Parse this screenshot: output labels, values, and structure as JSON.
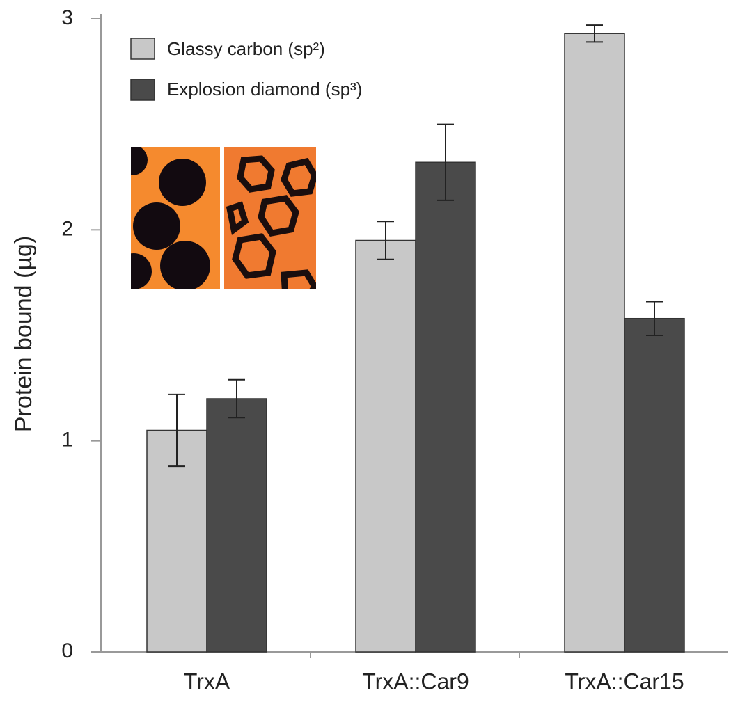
{
  "chart_data": {
    "type": "bar",
    "y_label": "Protein bound (µg)",
    "categories": [
      "TrxA",
      "TrxA::Car9",
      "TrxA::Car15"
    ],
    "series": [
      {
        "name": "Glassy carbon (sp²)",
        "color": "#c8c8c8",
        "values": [
          1.05,
          1.95,
          2.93
        ],
        "errors": [
          0.17,
          0.09,
          0.04
        ]
      },
      {
        "name": "Explosion diamond (sp³)",
        "color": "#4a4a4a",
        "values": [
          1.2,
          2.32,
          1.58
        ],
        "errors": [
          0.09,
          0.18,
          0.08
        ]
      }
    ],
    "ylim": [
      0,
      3
    ],
    "yticks": [
      0,
      1,
      2,
      3
    ],
    "grid": false
  }
}
